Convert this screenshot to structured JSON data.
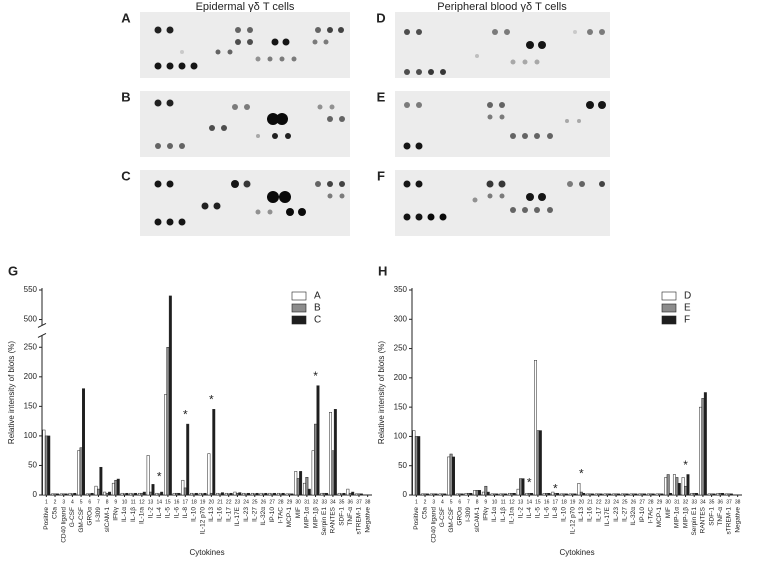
{
  "blots": {
    "titles": [
      "Epidermal γδ T cells",
      "Peripheral blood γδ T cells"
    ],
    "panel_labels": [
      "A",
      "B",
      "C",
      "D",
      "E",
      "F"
    ]
  },
  "chart_data": [
    {
      "type": "bar",
      "panel_label": "G",
      "ylabel": "Relative intensity of blots (%)",
      "xlabel": "Cytokines",
      "categories": [
        "Positive",
        "C5a",
        "CD40 ligand",
        "G-CSF",
        "GM-CSF",
        "GROα",
        "I-309",
        "sICAM-1",
        "IFNγ",
        "IL-1α",
        "IL-1β",
        "IL-1ra",
        "IL-2",
        "IL-4",
        "IL-5",
        "IL-6",
        "IL-8",
        "IL-10",
        "IL-12 p70",
        "IL-13",
        "IL-16",
        "IL-17",
        "IL-17E",
        "IL-23",
        "IL-27",
        "IL-32α",
        "IP-10",
        "I-TAC",
        "MCP-1",
        "MIF",
        "MIP-1α",
        "MIP-1β",
        "Serpin E1",
        "RANTES",
        "SDF-1",
        "TNF-α",
        "sTREM-1",
        "Negative"
      ],
      "category_numbers": [
        1,
        2,
        3,
        4,
        5,
        6,
        7,
        8,
        9,
        10,
        11,
        12,
        13,
        14,
        15,
        16,
        17,
        18,
        19,
        20,
        21,
        22,
        23,
        24,
        25,
        26,
        27,
        28,
        29,
        30,
        31,
        32,
        33,
        34,
        35,
        36,
        37,
        38
      ],
      "series": [
        {
          "name": "A",
          "color": "#ffffff",
          "values": [
            110,
            2,
            2,
            3,
            75,
            2,
            15,
            5,
            20,
            3,
            3,
            3,
            67,
            3,
            170,
            3,
            25,
            3,
            3,
            70,
            3,
            3,
            5,
            3,
            3,
            3,
            3,
            3,
            2,
            40,
            20,
            75,
            3,
            140,
            3,
            10,
            2,
            0
          ]
        },
        {
          "name": "B",
          "color": "#8c8c8c",
          "values": [
            100,
            2,
            2,
            2,
            80,
            2,
            10,
            3,
            25,
            2,
            2,
            3,
            5,
            2,
            250,
            3,
            12,
            2,
            2,
            3,
            2,
            2,
            3,
            2,
            2,
            2,
            2,
            2,
            2,
            28,
            30,
            120,
            3,
            75,
            2,
            3,
            2,
            0
          ]
        },
        {
          "name": "C",
          "color": "#1e1e1e",
          "values": [
            100,
            2,
            2,
            3,
            180,
            3,
            47,
            5,
            27,
            3,
            3,
            5,
            18,
            5,
            540,
            3,
            120,
            3,
            3,
            145,
            4,
            3,
            4,
            3,
            3,
            3,
            3,
            3,
            2,
            40,
            10,
            185,
            3,
            145,
            3,
            5,
            2,
            0
          ]
        }
      ],
      "ylim": [
        0,
        550
      ],
      "yticks": [
        0,
        50,
        100,
        150,
        200,
        250,
        500,
        550
      ],
      "y_break": [
        270,
        490
      ],
      "legend": "upper right",
      "annotations": [
        {
          "text": "*",
          "category": "IL-4",
          "y": 30
        },
        {
          "text": "*",
          "category": "IL-8",
          "y": 135
        },
        {
          "text": "*",
          "category": "IL-13",
          "y": 160
        },
        {
          "text": "*",
          "category": "MIP-1β",
          "y": 200
        }
      ]
    },
    {
      "type": "bar",
      "panel_label": "H",
      "ylabel": "Relative intensity of blots (%)",
      "xlabel": "Cytokines",
      "categories": [
        "Positive",
        "C5a",
        "CD40 ligand",
        "G-CSF",
        "GM-CSF",
        "GROα",
        "I-309",
        "sICAM-1",
        "IFNγ",
        "IL-1α",
        "IL-1β",
        "IL-1ra",
        "IL-2",
        "IL-4",
        "IL-5",
        "IL-6",
        "IL-8",
        "IL-10",
        "IL-12 p70",
        "IL-13",
        "IL-16",
        "IL-17",
        "IL-17E",
        "IL-23",
        "IL-27",
        "IL-32α",
        "IP-10",
        "I-TAC",
        "MCP-1",
        "MIF",
        "MIP-1α",
        "MIP-1β",
        "Serpin E1",
        "RANTES",
        "SDF-1",
        "TNF-α",
        "sTREM-1",
        "Negative"
      ],
      "category_numbers": [
        1,
        2,
        3,
        4,
        5,
        6,
        7,
        8,
        9,
        10,
        11,
        12,
        13,
        14,
        15,
        16,
        17,
        18,
        19,
        20,
        21,
        22,
        23,
        24,
        25,
        26,
        27,
        28,
        29,
        30,
        31,
        32,
        33,
        34,
        35,
        36,
        37,
        38
      ],
      "series": [
        {
          "name": "D",
          "color": "#ffffff",
          "values": [
            110,
            2,
            2,
            2,
            65,
            2,
            3,
            8,
            5,
            2,
            2,
            3,
            10,
            3,
            230,
            3,
            5,
            2,
            2,
            20,
            2,
            2,
            2,
            2,
            2,
            2,
            2,
            2,
            2,
            30,
            35,
            30,
            3,
            150,
            2,
            3,
            2,
            0
          ]
        },
        {
          "name": "E",
          "color": "#8c8c8c",
          "values": [
            100,
            2,
            2,
            2,
            70,
            2,
            3,
            8,
            15,
            2,
            2,
            3,
            28,
            3,
            110,
            3,
            3,
            2,
            2,
            5,
            2,
            2,
            2,
            2,
            2,
            2,
            2,
            2,
            2,
            35,
            30,
            15,
            3,
            165,
            2,
            3,
            2,
            0
          ]
        },
        {
          "name": "F",
          "color": "#1e1e1e",
          "values": [
            100,
            2,
            2,
            2,
            65,
            2,
            3,
            8,
            5,
            2,
            2,
            3,
            28,
            3,
            110,
            3,
            3,
            2,
            2,
            3,
            2,
            2,
            2,
            2,
            2,
            2,
            2,
            2,
            2,
            3,
            20,
            35,
            3,
            175,
            2,
            3,
            2,
            0
          ]
        }
      ],
      "ylim": [
        0,
        350
      ],
      "yticks": [
        0,
        50,
        100,
        150,
        200,
        250,
        300,
        350
      ],
      "legend": "upper right",
      "annotations": [
        {
          "text": "*",
          "category": "IL-4",
          "y": 20
        },
        {
          "text": "*",
          "category": "IL-8",
          "y": 10
        },
        {
          "text": "*",
          "category": "IL-13",
          "y": 35
        },
        {
          "text": "*",
          "category": "MIP-1β",
          "y": 50
        }
      ]
    }
  ]
}
